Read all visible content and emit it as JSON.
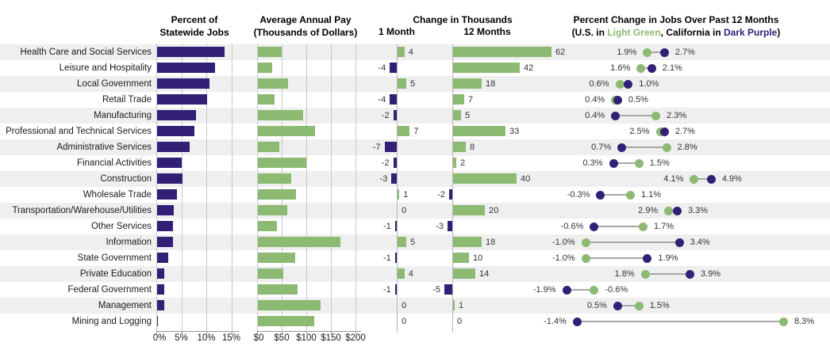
{
  "headers": {
    "col1": {
      "line1": "Percent of",
      "line2": "Statewide Jobs"
    },
    "col2": {
      "line1": "Average Annual Pay",
      "line2": "(Thousands of Dollars)"
    },
    "col3": {
      "title": "Change in Thousands",
      "sub_1_month": "1 Month",
      "sub_12_months": "12 Months"
    },
    "col4": {
      "line1": "Percent Change in Jobs Over Past 12 Months",
      "legend_prefix": "(U.S. in ",
      "legend_green": "Light Green",
      "legend_mid": ", California in ",
      "legend_purple": "Dark Purple",
      "legend_suffix": ")"
    }
  },
  "colors": {
    "light_green": "#8dba73",
    "dark_purple": "#322077",
    "stripe_gray": "#efefef",
    "gridline_gray": "#c9c9c9",
    "connector_gray": "#a6a6a6"
  },
  "chart_data": {
    "type": "bar",
    "title": "California employment dashboard by industry",
    "legend": {
      "us": "U.S. (Light Green)",
      "california": "California (Dark Purple)"
    },
    "categories": [
      "Health Care and Social Services",
      "Leisure and Hospitality",
      "Local Government",
      "Retail Trade",
      "Manufacturing",
      "Professional and Technical Services",
      "Administrative Services",
      "Financial Activities",
      "Construction",
      "Wholesale Trade",
      "Transportation/Warehouse/Utilities",
      "Other Services",
      "Information",
      "State Government",
      "Private Education",
      "Federal Government",
      "Management",
      "Mining and Logging"
    ],
    "series": [
      {
        "name": "Percent of Statewide Jobs",
        "unit": "%",
        "axis_range": [
          0,
          15
        ],
        "values": [
          13.5,
          11.6,
          10.4,
          10.0,
          7.7,
          7.5,
          6.5,
          4.9,
          5.0,
          4.0,
          3.4,
          3.2,
          3.1,
          2.3,
          1.4,
          1.5,
          1.4,
          0.1
        ]
      },
      {
        "name": "Average Annual Pay (Thousands of Dollars)",
        "unit": "$k",
        "axis_range": [
          0,
          200
        ],
        "values": [
          48,
          29,
          62,
          34,
          92,
          116,
          44,
          98,
          68,
          78,
          60,
          38,
          168,
          75,
          51,
          81,
          128,
          114
        ]
      },
      {
        "name": "Change in Thousands - 1 Month",
        "values": [
          4,
          -4,
          5,
          -4,
          -2,
          7,
          -7,
          -2,
          -3,
          1,
          0,
          -1,
          5,
          -1,
          4,
          -1,
          0,
          0
        ]
      },
      {
        "name": "Change in Thousands - 12 Months",
        "values": [
          62,
          42,
          18,
          7,
          5,
          33,
          8,
          2,
          40,
          -2,
          20,
          -3,
          18,
          10,
          14,
          -5,
          1,
          0
        ]
      },
      {
        "name": "Percent Change in Jobs Over Past 12 Months - U.S.",
        "unit": "%",
        "values": [
          1.9,
          1.6,
          0.6,
          0.4,
          2.3,
          2.5,
          2.8,
          1.5,
          4.1,
          1.1,
          2.9,
          1.7,
          -1.0,
          -1.0,
          1.8,
          -0.6,
          1.5,
          8.3
        ]
      },
      {
        "name": "Percent Change in Jobs Over Past 12 Months - California",
        "unit": "%",
        "values": [
          2.7,
          2.1,
          1.0,
          0.5,
          0.4,
          2.7,
          0.7,
          0.3,
          4.9,
          -0.3,
          3.3,
          -0.6,
          3.4,
          1.9,
          3.9,
          -1.9,
          0.5,
          -1.4
        ]
      }
    ],
    "axes": {
      "pct_jobs_ticks": [
        "0%",
        "5%",
        "10%",
        "15%"
      ],
      "pay_ticks": [
        "$0",
        "$50",
        "$100",
        "$150",
        "$200"
      ]
    },
    "layout_hints": {
      "grid": true,
      "row_striping": true,
      "legend_position": "header"
    }
  }
}
